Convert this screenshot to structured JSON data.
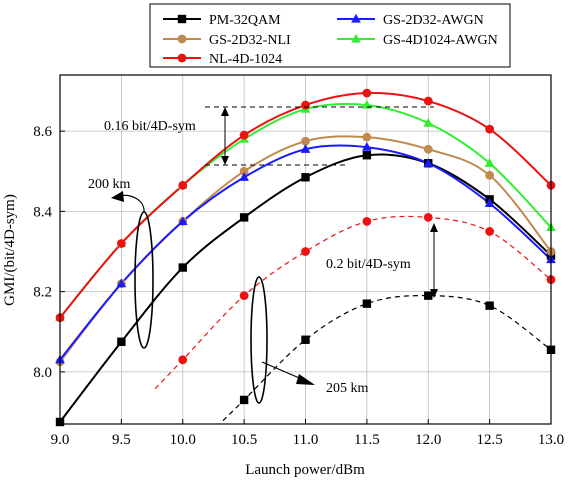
{
  "chart_data": {
    "type": "line",
    "xlabel": "Launch power/dBm",
    "ylabel": "GMI/(bit/4D-sym)",
    "xlim": [
      9.0,
      13.0
    ],
    "ylim": [
      7.87,
      8.74
    ],
    "x_ticks": [
      "9.0",
      "9.5",
      "10.0",
      "10.5",
      "11.0",
      "11.5",
      "12.0",
      "12.5",
      "13.0"
    ],
    "y_ticks": [
      "8.0",
      "8.2",
      "8.4",
      "8.6"
    ],
    "grid": true,
    "legend_placement": "top-center",
    "x": [
      9.0,
      9.5,
      10.0,
      10.5,
      11.0,
      11.5,
      12.0,
      12.5,
      13.0
    ],
    "series": [
      {
        "name": "PM-32QAM",
        "color": "#000000",
        "marker": "square",
        "distance": "200 km",
        "values": [
          7.875,
          8.075,
          8.26,
          8.385,
          8.485,
          8.54,
          8.52,
          8.43,
          8.29
        ]
      },
      {
        "name": "GS-2D32-NLI",
        "color": "#c08a4e",
        "marker": "circle",
        "distance": "200 km",
        "values": [
          8.025,
          8.22,
          8.375,
          8.5,
          8.575,
          8.585,
          8.555,
          8.49,
          8.3
        ]
      },
      {
        "name": "GS-2D32-AWGN",
        "color": "#1a1aff",
        "marker": "triangle",
        "distance": "200 km",
        "values": [
          8.03,
          8.22,
          8.375,
          8.485,
          8.555,
          8.56,
          8.52,
          8.42,
          8.28
        ]
      },
      {
        "name": "GS-4D1024-AWGN",
        "color": "#33ee33",
        "marker": "triangle",
        "distance": "200 km",
        "values": [
          8.135,
          8.32,
          8.465,
          8.58,
          8.655,
          8.665,
          8.62,
          8.52,
          8.36
        ]
      },
      {
        "name": "NL-4D-1024",
        "color": "#ee1111",
        "marker": "circle",
        "distance": "200 km",
        "values": [
          8.135,
          8.32,
          8.465,
          8.59,
          8.665,
          8.695,
          8.675,
          8.605,
          8.465
        ]
      },
      {
        "name": "PM-32QAM",
        "color": "#000000",
        "marker": "square",
        "distance": "205 km",
        "dashed": true,
        "values": [
          null,
          null,
          null,
          7.93,
          8.08,
          8.17,
          8.19,
          8.165,
          8.055
        ]
      },
      {
        "name": "NL-4D-1024",
        "color": "#ee1111",
        "marker": "circle",
        "distance": "205 km",
        "dashed": true,
        "values": [
          null,
          null,
          8.03,
          8.19,
          8.3,
          8.375,
          8.385,
          8.35,
          8.23
        ]
      }
    ],
    "annotations": [
      {
        "text": "0.16 bit/4D-sym"
      },
      {
        "text": "0.2 bit/4D-sym"
      },
      {
        "text": "200 km"
      },
      {
        "text": "205 km"
      }
    ]
  }
}
